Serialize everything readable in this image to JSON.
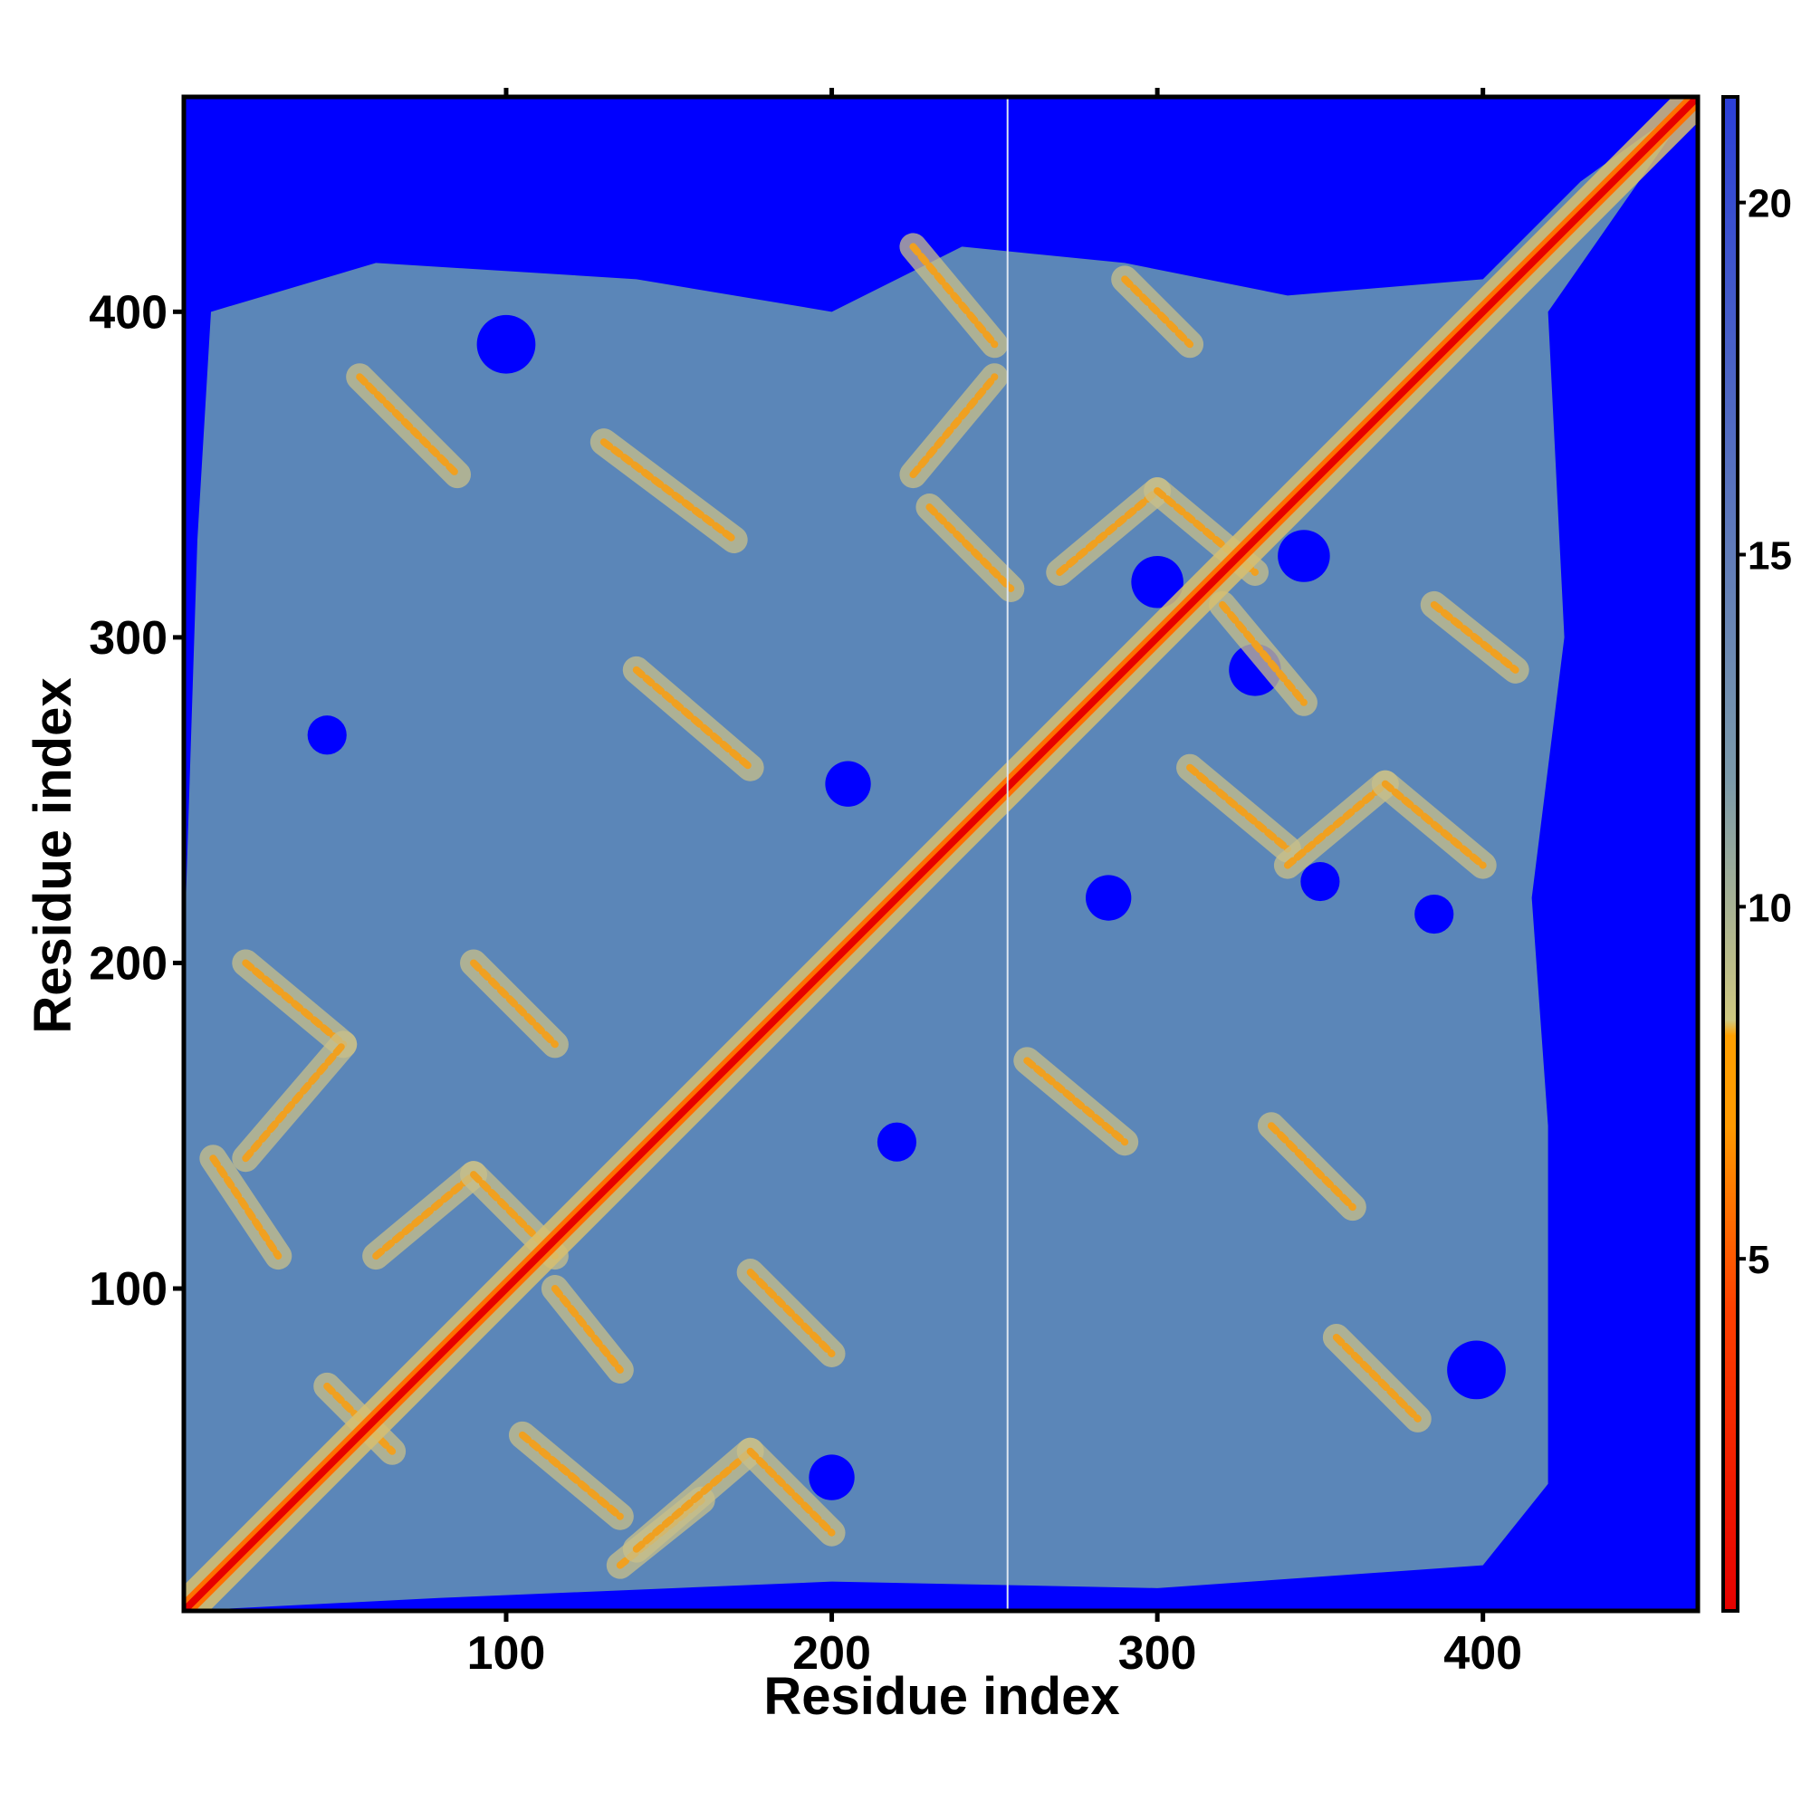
{
  "chart_data": {
    "type": "heatmap",
    "title": "",
    "xlabel": "Residue index",
    "ylabel": "Residue index",
    "xlim": [
      1,
      466
    ],
    "ylim": [
      1,
      466
    ],
    "xticks": [
      100,
      200,
      300,
      400
    ],
    "yticks": [
      100,
      200,
      300,
      400
    ],
    "colorbar": {
      "ticks": [
        5,
        10,
        15,
        20
      ],
      "range": [
        0,
        21.5
      ],
      "colors": {
        "low": "#e60000",
        "mid_low": "#ff8c00",
        "mid": "#e8c060",
        "mid_high": "#5b86b8",
        "saturated": "#0000ff"
      }
    },
    "structure": {
      "n_residues": 466,
      "domain_extent_x": [
        1,
        420
      ],
      "domain_extent_y": [
        1,
        430
      ],
      "gap_column": 254,
      "contact_bands": [
        {
          "x1": 55,
          "y1": 380,
          "x2": 85,
          "y2": 350
        },
        {
          "x1": 130,
          "y1": 360,
          "x2": 170,
          "y2": 330
        },
        {
          "x1": 140,
          "y1": 290,
          "x2": 175,
          "y2": 260
        },
        {
          "x1": 225,
          "y1": 420,
          "x2": 250,
          "y2": 390
        },
        {
          "x1": 225,
          "y1": 350,
          "x2": 250,
          "y2": 380
        },
        {
          "x1": 230,
          "y1": 340,
          "x2": 255,
          "y2": 315
        },
        {
          "x1": 270,
          "y1": 320,
          "x2": 300,
          "y2": 345
        },
        {
          "x1": 300,
          "y1": 345,
          "x2": 330,
          "y2": 320
        },
        {
          "x1": 290,
          "y1": 410,
          "x2": 310,
          "y2": 390
        },
        {
          "x1": 320,
          "y1": 310,
          "x2": 345,
          "y2": 280
        },
        {
          "x1": 310,
          "y1": 260,
          "x2": 340,
          "y2": 235
        },
        {
          "x1": 340,
          "y1": 230,
          "x2": 370,
          "y2": 255
        },
        {
          "x1": 370,
          "y1": 255,
          "x2": 400,
          "y2": 230
        },
        {
          "x1": 385,
          "y1": 310,
          "x2": 410,
          "y2": 290
        },
        {
          "x1": 260,
          "y1": 170,
          "x2": 290,
          "y2": 145
        },
        {
          "x1": 335,
          "y1": 150,
          "x2": 360,
          "y2": 125
        },
        {
          "x1": 355,
          "y1": 85,
          "x2": 380,
          "y2": 60
        },
        {
          "x1": 20,
          "y1": 200,
          "x2": 50,
          "y2": 175
        },
        {
          "x1": 20,
          "y1": 140,
          "x2": 50,
          "y2": 175
        },
        {
          "x1": 90,
          "y1": 200,
          "x2": 115,
          "y2": 175
        },
        {
          "x1": 60,
          "y1": 110,
          "x2": 90,
          "y2": 135
        },
        {
          "x1": 90,
          "y1": 135,
          "x2": 115,
          "y2": 110
        },
        {
          "x1": 115,
          "y1": 100,
          "x2": 135,
          "y2": 75
        },
        {
          "x1": 105,
          "y1": 55,
          "x2": 135,
          "y2": 30
        },
        {
          "x1": 135,
          "y1": 15,
          "x2": 160,
          "y2": 35
        },
        {
          "x1": 140,
          "y1": 20,
          "x2": 175,
          "y2": 50
        },
        {
          "x1": 175,
          "y1": 50,
          "x2": 200,
          "y2": 25
        },
        {
          "x1": 175,
          "y1": 105,
          "x2": 200,
          "y2": 80
        },
        {
          "x1": 45,
          "y1": 70,
          "x2": 65,
          "y2": 50
        },
        {
          "x1": 10,
          "y1": 140,
          "x2": 30,
          "y2": 110
        }
      ],
      "hole_blobs": [
        {
          "x": 300,
          "y": 317,
          "r": 8
        },
        {
          "x": 330,
          "y": 290,
          "r": 8
        },
        {
          "x": 100,
          "y": 390,
          "r": 9
        },
        {
          "x": 205,
          "y": 255,
          "r": 7
        },
        {
          "x": 345,
          "y": 325,
          "r": 8
        },
        {
          "x": 350,
          "y": 225,
          "r": 6
        },
        {
          "x": 285,
          "y": 220,
          "r": 7
        },
        {
          "x": 385,
          "y": 215,
          "r": 6
        },
        {
          "x": 398,
          "y": 75,
          "r": 9
        },
        {
          "x": 45,
          "y": 270,
          "r": 6
        },
        {
          "x": 220,
          "y": 145,
          "r": 6
        },
        {
          "x": 200,
          "y": 42,
          "r": 7
        }
      ]
    }
  }
}
